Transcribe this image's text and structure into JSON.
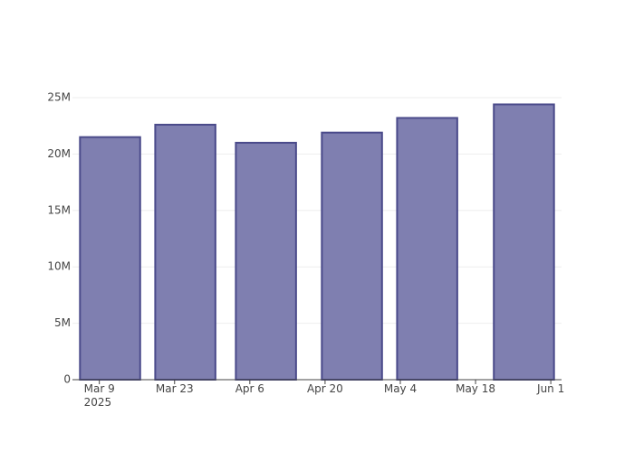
{
  "chart_data": {
    "type": "bar",
    "x": [
      "2025-03-11",
      "2025-03-25",
      "2025-04-09",
      "2025-04-25",
      "2025-05-09",
      "2025-05-27"
    ],
    "values": [
      21500000,
      22600000,
      21000000,
      21900000,
      23200000,
      24400000
    ],
    "color": "#7f7fb0",
    "line_color": "#4a4a8a",
    "xlim": [
      "2025-03-04",
      "2025-06-03"
    ],
    "xticks": [
      {
        "value": "2025-03-09",
        "label": "Mar 9\n2025"
      },
      {
        "value": "2025-03-23",
        "label": "Mar 23"
      },
      {
        "value": "2025-04-06",
        "label": "Apr 6"
      },
      {
        "value": "2025-04-20",
        "label": "Apr 20"
      },
      {
        "value": "2025-05-04",
        "label": "May 4"
      },
      {
        "value": "2025-05-18",
        "label": "May 18"
      },
      {
        "value": "2025-06-01",
        "label": "Jun 1"
      }
    ],
    "ylim": [
      0,
      25640000
    ],
    "yticks": [
      0,
      {
        "value": 5000000,
        "label": "5M"
      },
      {
        "value": 10000000,
        "label": "10M"
      },
      {
        "value": 15000000,
        "label": "15M"
      },
      {
        "value": 20000000,
        "label": "20M"
      },
      {
        "value": 25000000,
        "label": "25M"
      }
    ],
    "grid": true
  }
}
